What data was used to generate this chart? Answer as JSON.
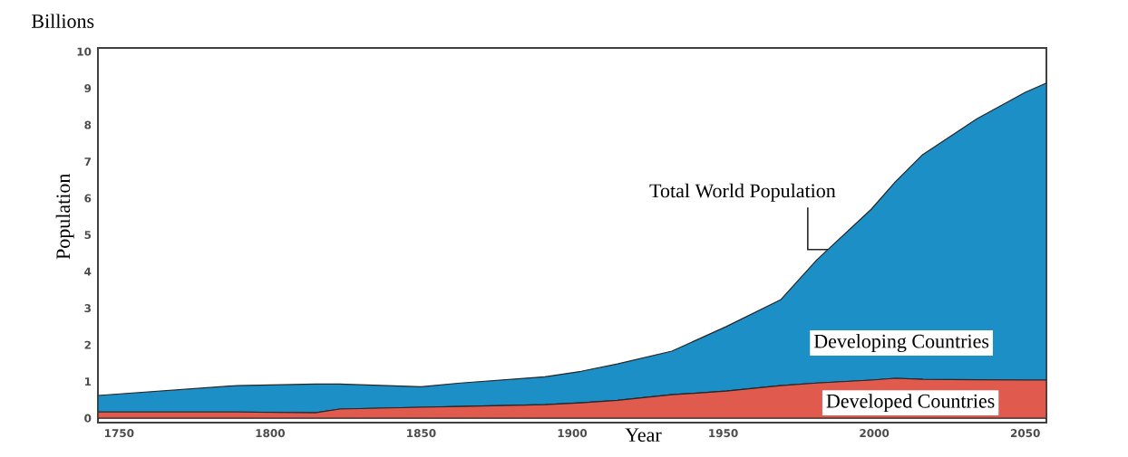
{
  "chart_data": {
    "type": "area",
    "stacked": true,
    "xlabel": "Year",
    "ylabel": "Population",
    "annotations": [
      "Billions",
      {
        "text": "Total World Population",
        "x": 1985,
        "y": 4.6
      }
    ],
    "x": [
      1743,
      1789,
      1815,
      1823,
      1850,
      1863,
      1891,
      1903,
      1915,
      1933,
      1951,
      1969,
      1981,
      1999,
      2007,
      2016,
      2034,
      2050,
      2057
    ],
    "series": [
      {
        "name": "Developed Countries",
        "color": "#e05a4e",
        "values": [
          0.17,
          0.17,
          0.15,
          0.25,
          0.3,
          0.32,
          0.37,
          0.42,
          0.49,
          0.64,
          0.74,
          0.89,
          0.96,
          1.04,
          1.09,
          1.06,
          1.05,
          1.04,
          1.04
        ]
      },
      {
        "name": "Developing Countries",
        "color": "#1b8fc6",
        "values": [
          0.45,
          0.72,
          0.78,
          0.68,
          0.56,
          0.64,
          0.76,
          0.86,
          0.99,
          1.19,
          1.76,
          2.34,
          3.36,
          4.66,
          5.36,
          6.13,
          7.12,
          7.85,
          8.1
        ]
      }
    ],
    "xlim": [
      1743,
      2057
    ],
    "ylim": [
      -0.12,
      10.1
    ],
    "xticks": [
      1750,
      1800,
      1850,
      1900,
      1950,
      2000,
      2050
    ],
    "yticks": [
      0,
      1,
      2,
      3,
      4,
      5,
      6,
      7,
      8,
      9,
      10
    ],
    "grid": false
  }
}
